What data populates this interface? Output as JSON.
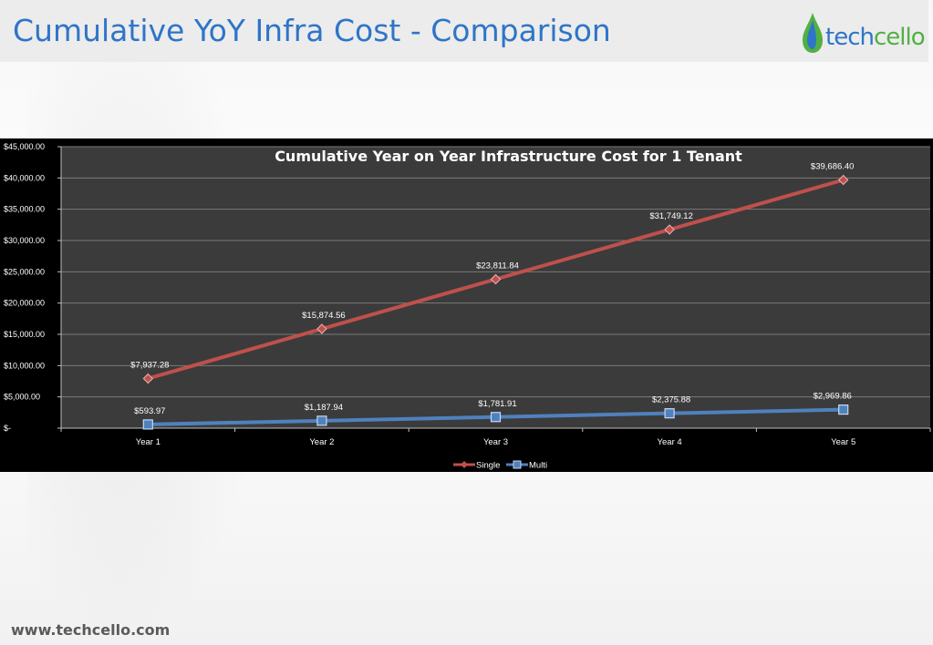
{
  "slide": {
    "title": "Cumulative YoY Infra Cost - Comparison",
    "footer_url": "www.techcello.com"
  },
  "logo": {
    "text_part1": "tech",
    "text_part2": "cello",
    "colors": {
      "blue": "#2e75c8",
      "green": "#52b043"
    }
  },
  "colors": {
    "plot_background": "#3b3b3b",
    "outer_background": "#000000",
    "gridline": "#7a7a7a",
    "single": "#c0504d",
    "multi": "#4f81bd"
  },
  "chart_data": {
    "type": "line",
    "title": "Cumulative Year on Year Infrastructure Cost for 1 Tenant",
    "xlabel": "",
    "ylabel": "",
    "categories": [
      "Year 1",
      "Year 2",
      "Year 3",
      "Year 4",
      "Year 5"
    ],
    "series": [
      {
        "name": "Single",
        "values": [
          7937.28,
          15874.56,
          23811.84,
          31749.12,
          39686.4
        ],
        "labels": [
          "$7,937.28",
          "$15,874.56",
          "$23,811.84",
          "$31,749.12",
          "$39,686.40"
        ],
        "marker": "diamond"
      },
      {
        "name": "Multi",
        "values": [
          593.97,
          1187.94,
          1781.91,
          2375.88,
          2969.86
        ],
        "labels": [
          "$593.97",
          "$1,187.94",
          "$1,781.91",
          "$2,375.88",
          "$2,969.86"
        ],
        "marker": "square"
      }
    ],
    "ylim": [
      0,
      45000
    ],
    "y_ticks": [
      0,
      5000,
      10000,
      15000,
      20000,
      25000,
      30000,
      35000,
      40000,
      45000
    ],
    "y_tick_labels": [
      "$-",
      "$5,000.00",
      "$10,000.00",
      "$15,000.00",
      "$20,000.00",
      "$25,000.00",
      "$30,000.00",
      "$35,000.00",
      "$40,000.00",
      "$45,000.00"
    ],
    "grid": true,
    "legend": "bottom"
  }
}
